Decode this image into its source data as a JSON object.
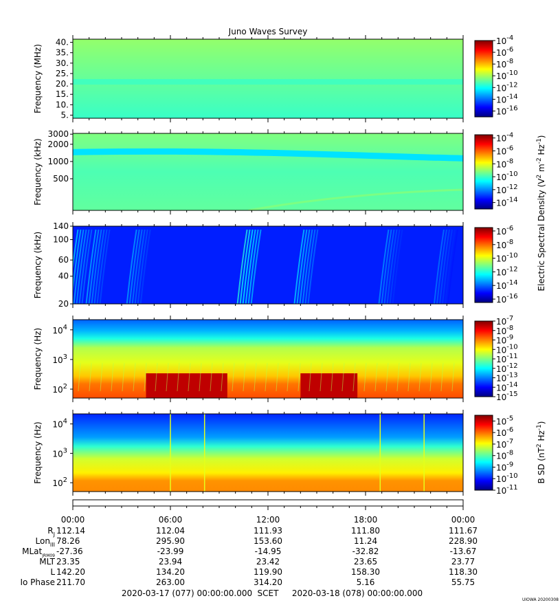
{
  "title": "Juno Waves Survey",
  "credit": "UIOWA 20200308",
  "chart_data": [
    {
      "type": "heatmap",
      "ylabel": "Frequency (MHz)",
      "yticks": [
        "5.",
        "10.",
        "15.",
        "20.",
        "25.",
        "30.",
        "35.",
        "40."
      ],
      "ylim": [
        3.5,
        41.5
      ],
      "features": [
        {
          "kind": "band",
          "y": 21,
          "level": -11.3
        }
      ],
      "colorbar": {
        "ticks": [
          "-4",
          "-6",
          "-8",
          "-10",
          "-12",
          "-14",
          "-16"
        ],
        "range": [
          -17,
          -4
        ]
      }
    },
    {
      "type": "heatmap",
      "ylabel": "Frequency (kHz)",
      "yticks": [
        "500",
        "1000",
        "2000",
        "3000"
      ],
      "ylim": [
        140,
        3100
      ],
      "ylog": true,
      "features": [
        {
          "kind": "band",
          "y": 1200,
          "level": -11
        }
      ],
      "colorbar": {
        "ticks": [
          "-4",
          "-6",
          "-8",
          "-10",
          "-12",
          "-14"
        ],
        "range": [
          -15,
          -3.5
        ]
      }
    },
    {
      "type": "heatmap",
      "ylabel": "Frequency (kHz)",
      "yticks": [
        "20",
        "40",
        "60",
        "100",
        "140"
      ],
      "ylim": [
        20,
        140
      ],
      "ylog": true,
      "background_level": -14.8,
      "features": [
        {
          "kind": "streak",
          "x": 0.4,
          "level": -12.8
        },
        {
          "kind": "streak",
          "x": 1.5,
          "level": -13.2
        },
        {
          "kind": "streak",
          "x": 4.0,
          "level": -13.3
        },
        {
          "kind": "streak",
          "x": 10.8,
          "level": -12
        },
        {
          "kind": "streak",
          "x": 14.3,
          "level": -12.8
        },
        {
          "kind": "streak",
          "x": 19.5,
          "level": -13.5
        },
        {
          "kind": "streak",
          "x": 22.9,
          "level": -13.8
        }
      ],
      "colorbar": {
        "ticks": [
          "-6",
          "-8",
          "-10",
          "-12",
          "-14",
          "-16"
        ],
        "range": [
          -16.5,
          -5.5
        ]
      }
    },
    {
      "type": "heatmap",
      "ylabel": "Frequency (Hz)",
      "yticks": [
        "2",
        "3",
        "4"
      ],
      "ylim": [
        50,
        22000
      ],
      "ylog": true,
      "features": [
        {
          "kind": "high_band",
          "x": [
            4.5,
            9.5
          ],
          "level": -7.5
        },
        {
          "kind": "high_band",
          "x": [
            14.0,
            17.5
          ],
          "level": -7.5
        }
      ],
      "colorbar": {
        "ticks": [
          "-7",
          "-8",
          "-9",
          "-10",
          "-11",
          "-12",
          "-13",
          "-14",
          "-15"
        ],
        "range": [
          -15,
          -7
        ]
      }
    },
    {
      "type": "heatmap",
      "ylabel": "Frequency (Hz)",
      "yticks": [
        "2",
        "3",
        "4"
      ],
      "ylim": [
        50,
        22000
      ],
      "ylog": true,
      "colorbar": {
        "label": "B SD (nT",
        "ticks": [
          "-5",
          "-6",
          "-7",
          "-8",
          "-9",
          "-10",
          "-11"
        ],
        "range": [
          -11,
          -4.5
        ]
      }
    }
  ],
  "shared_colorbar_label": "Electric Spectral Density (V",
  "unit_exponents": [
    "2",
    "-2",
    "-1"
  ],
  "bunit_exponents": [
    "2",
    "-1"
  ],
  "xaxis": {
    "ticks": [
      "00:00",
      "06:00",
      "12:00",
      "18:00",
      "00:00"
    ],
    "hours": [
      0,
      6,
      12,
      18,
      24
    ]
  },
  "ephemeris": [
    {
      "label": "R",
      "sub": "J",
      "values": [
        "112.14",
        "112.04",
        "111.93",
        "111.80",
        "111.67"
      ]
    },
    {
      "label": "Lon",
      "sub": "III",
      "values": [
        "78.26",
        "295.90",
        "153.60",
        "11.24",
        "228.90"
      ]
    },
    {
      "label": "MLat",
      "sub": "JRM09",
      "values": [
        "-27.36",
        "-23.99",
        "-14.95",
        "-32.82",
        "-13.67"
      ]
    },
    {
      "label": "MLT",
      "sub": "",
      "values": [
        "23.35",
        "23.94",
        "23.42",
        "23.65",
        "23.77"
      ]
    },
    {
      "label": "L",
      "sub": "",
      "values": [
        "142.20",
        "134.20",
        "119.90",
        "158.30",
        "118.30"
      ]
    },
    {
      "label": "Io Phase",
      "sub": "",
      "values": [
        "211.70",
        "263.00",
        "314.20",
        "5.16",
        "55.75"
      ]
    }
  ],
  "footer": {
    "start": "2020-03-17 (077) 00:00:00.000",
    "scet": "SCET",
    "end": "2020-03-18 (078) 00:00:00.000"
  }
}
